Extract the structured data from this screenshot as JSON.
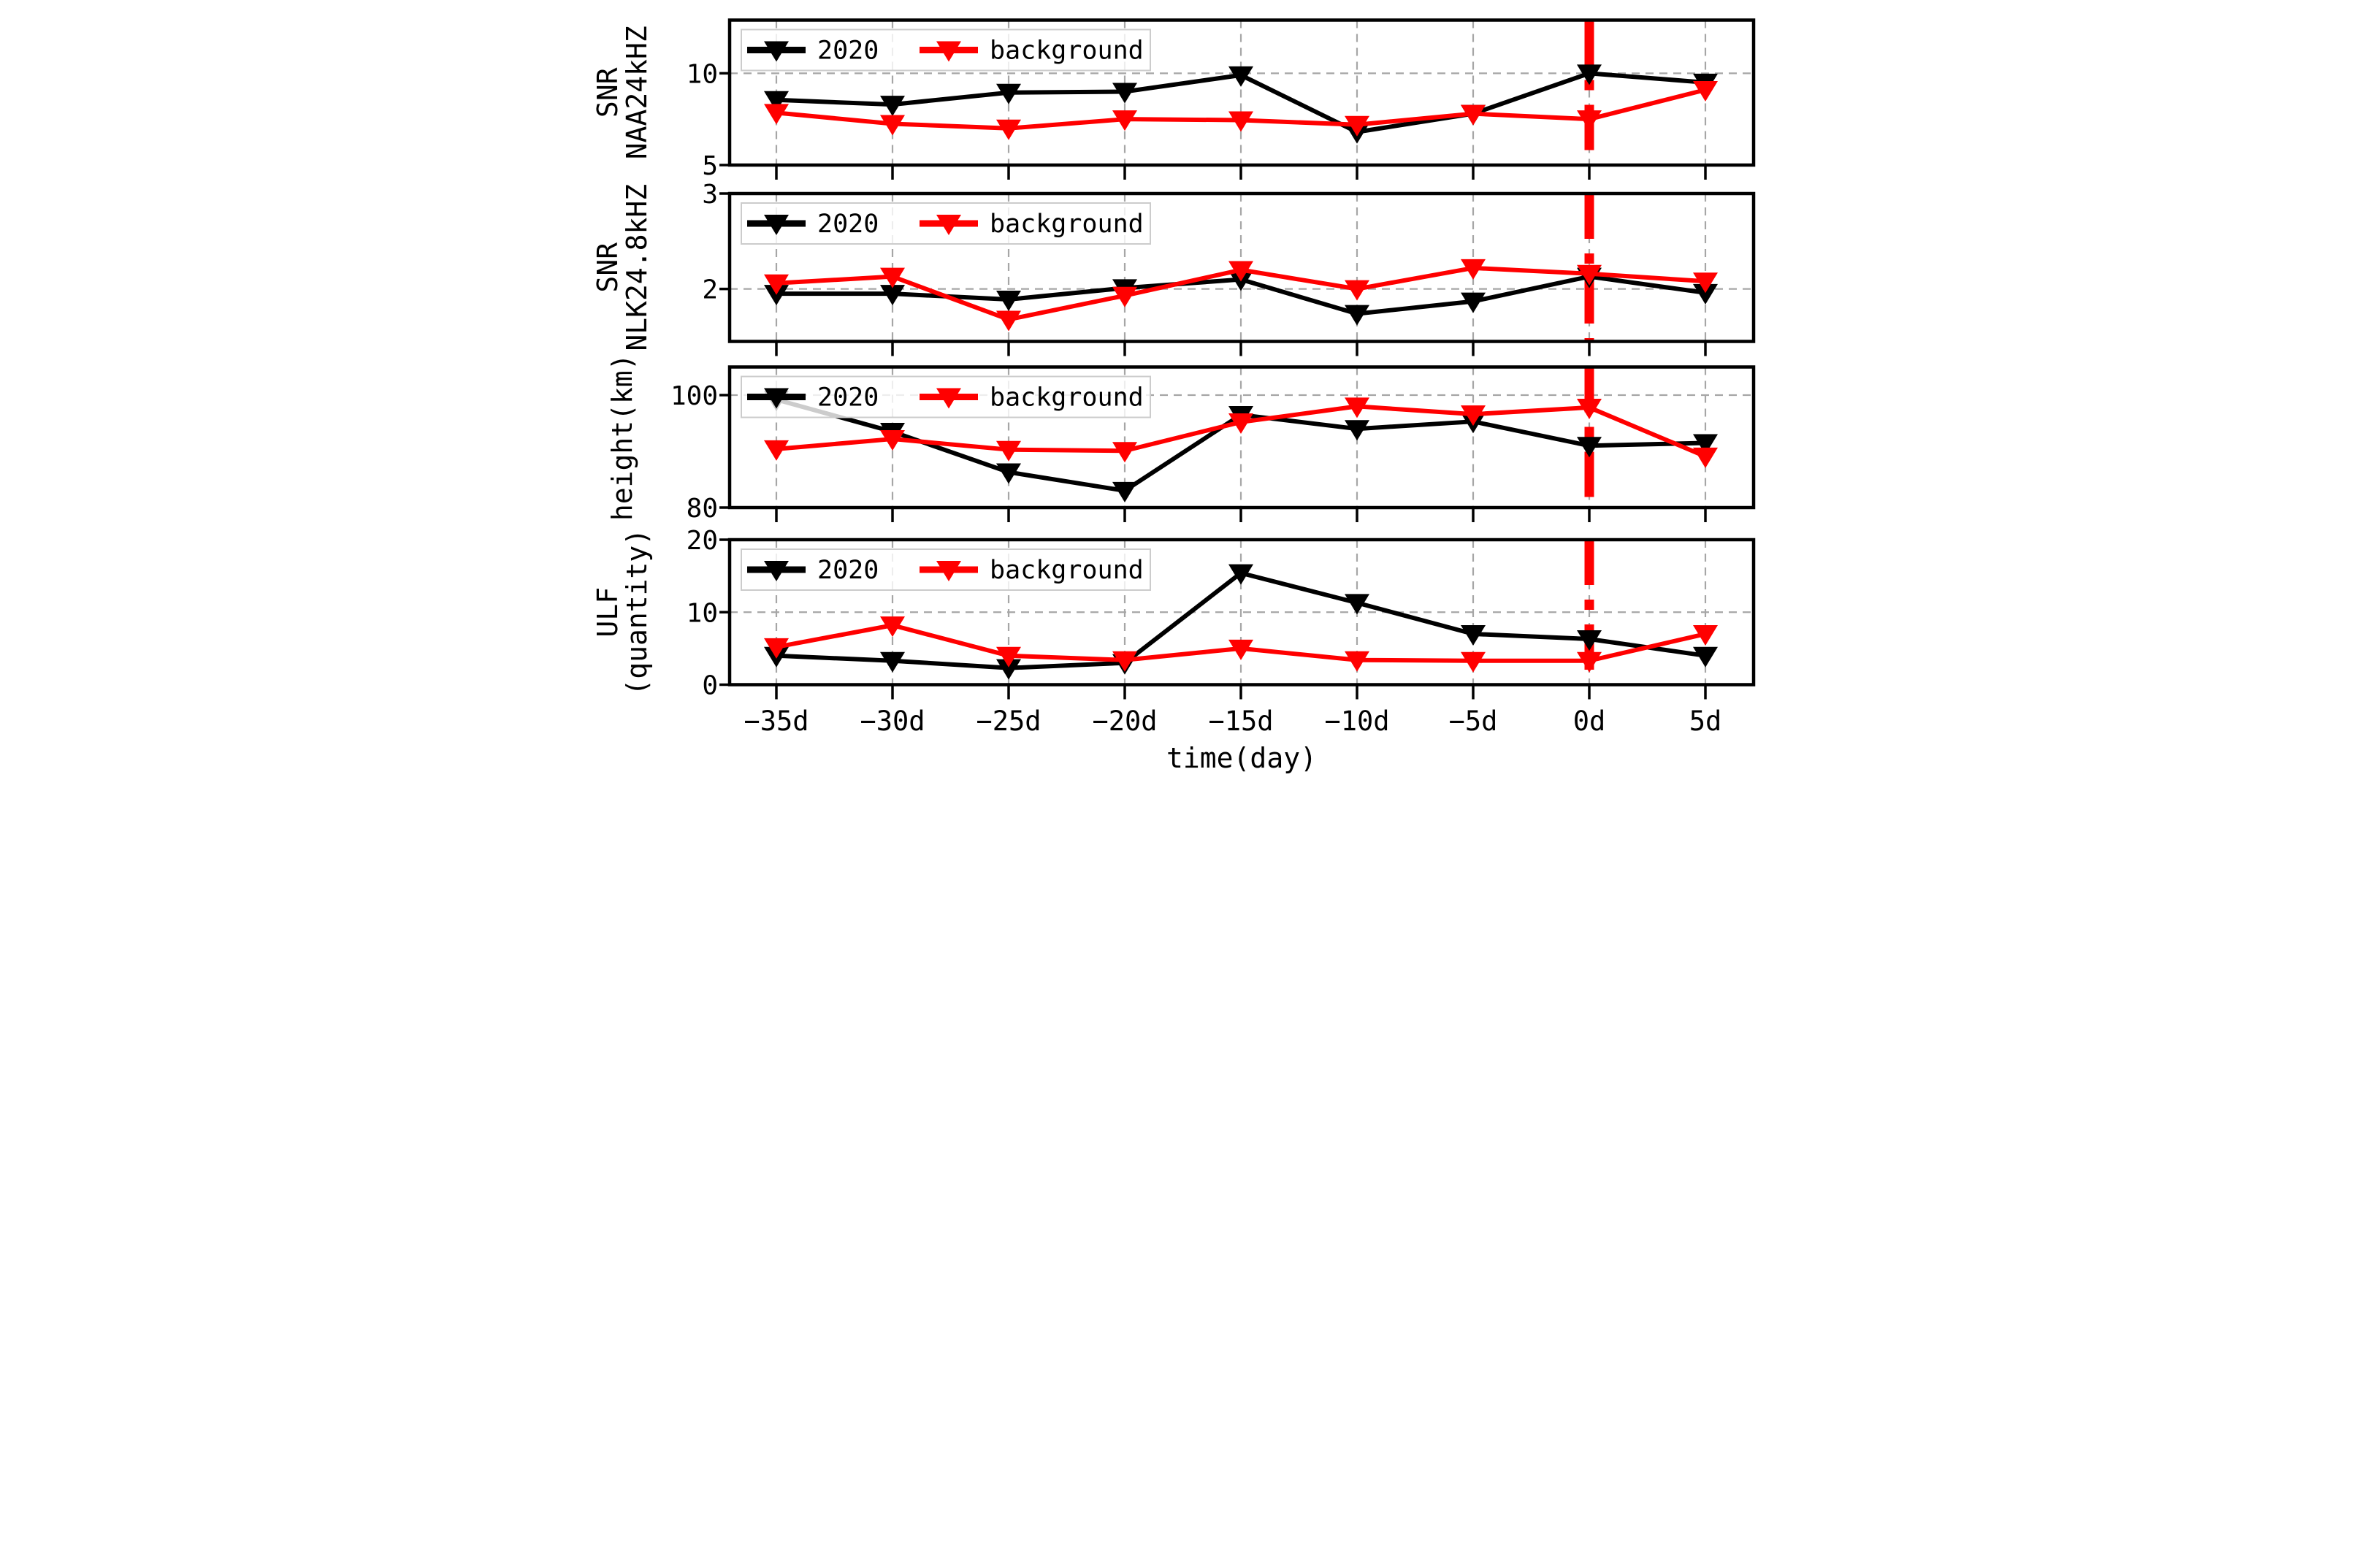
{
  "figure": {
    "background": "#ffffff",
    "description": "Four stacked time-series panels comparing 2020 observations with background values around an event day (0d)"
  },
  "chart_data": {
    "type": "line",
    "x_categories": [
      "−35d",
      "−30d",
      "−25d",
      "−20d",
      "−15d",
      "−10d",
      "−5d",
      "0d",
      "5d"
    ],
    "xlabel": "time(day)",
    "event_line_category": "0d",
    "legend_labels": [
      "2020",
      "background"
    ],
    "legend_position": "upper-left",
    "grid": true,
    "marker": "triangle-down",
    "colors": {
      "series_2020": "#000000",
      "series_background": "#ff0000",
      "event_line": "#ff0000",
      "gridline": "#a6a6a6",
      "frame": "#000000",
      "legend_border": "#cccccc",
      "legend_fill": "#ffffff"
    },
    "subplots": [
      {
        "ylabel_lines": [
          "SNR",
          "NAA24kHZ"
        ],
        "ylim": [
          5,
          12.9
        ],
        "yticks": [
          {
            "value": 5,
            "label": "5",
            "gridline": false
          },
          {
            "value": 10,
            "label": "10",
            "gridline": true
          }
        ],
        "series": [
          {
            "name": "2020",
            "color": "#000000",
            "values": [
              8.55,
              8.3,
              8.95,
              9.0,
              9.9,
              6.8,
              7.8,
              10.0,
              9.5
            ]
          },
          {
            "name": "background",
            "color": "#ff0000",
            "values": [
              7.85,
              7.25,
              7.0,
              7.5,
              7.45,
              7.2,
              7.8,
              7.5,
              9.1
            ]
          }
        ]
      },
      {
        "ylabel_lines": [
          "SNR",
          "NLK24.8kHZ"
        ],
        "ylim": [
          1.45,
          3.0
        ],
        "yticks": [
          {
            "value": 2,
            "label": "2",
            "gridline": true
          },
          {
            "value": 3,
            "label": "3",
            "gridline": false
          }
        ],
        "series": [
          {
            "name": "2020",
            "color": "#000000",
            "values": [
              1.95,
              1.95,
              1.89,
              2.01,
              2.1,
              1.74,
              1.87,
              2.13,
              1.96
            ]
          },
          {
            "name": "background",
            "color": "#ff0000",
            "values": [
              2.06,
              2.13,
              1.68,
              1.93,
              2.2,
              2.0,
              2.22,
              2.16,
              2.08
            ]
          }
        ]
      },
      {
        "ylabel_lines": [
          "height(km)"
        ],
        "ylim": [
          80,
          105
        ],
        "yticks": [
          {
            "value": 80,
            "label": "80",
            "gridline": false
          },
          {
            "value": 100,
            "label": "100",
            "gridline": true
          }
        ],
        "series": [
          {
            "name": "2020",
            "color": "#000000",
            "values": [
              99.2,
              93.5,
              86.3,
              83.0,
              96.5,
              94.0,
              95.3,
              91.0,
              91.5
            ]
          },
          {
            "name": "background",
            "color": "#ff0000",
            "values": [
              90.4,
              92.2,
              90.3,
              90.1,
              95.2,
              98.0,
              96.6,
              97.8,
              89.1
            ]
          }
        ]
      },
      {
        "ylabel_lines": [
          "ULF",
          "(quantity)"
        ],
        "ylim": [
          0,
          20
        ],
        "yticks": [
          {
            "value": 0,
            "label": "0",
            "gridline": false
          },
          {
            "value": 10,
            "label": "10",
            "gridline": true
          },
          {
            "value": 20,
            "label": "20",
            "gridline": false
          }
        ],
        "series": [
          {
            "name": "2020",
            "color": "#000000",
            "values": [
              4.0,
              3.3,
              2.3,
              3.0,
              15.4,
              11.3,
              7.0,
              6.3,
              4.0
            ]
          },
          {
            "name": "background",
            "color": "#ff0000",
            "values": [
              5.2,
              8.2,
              4.0,
              3.4,
              5.0,
              3.4,
              3.3,
              3.3,
              7.0
            ]
          }
        ]
      }
    ]
  }
}
